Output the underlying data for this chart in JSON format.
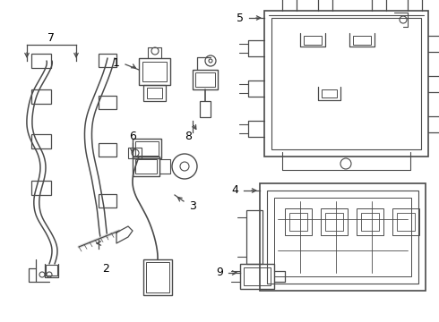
{
  "bg_color": "#ffffff",
  "line_color": "#4a4a4a",
  "label_color": "#000000",
  "figsize": [
    4.9,
    3.6
  ],
  "dpi": 100
}
